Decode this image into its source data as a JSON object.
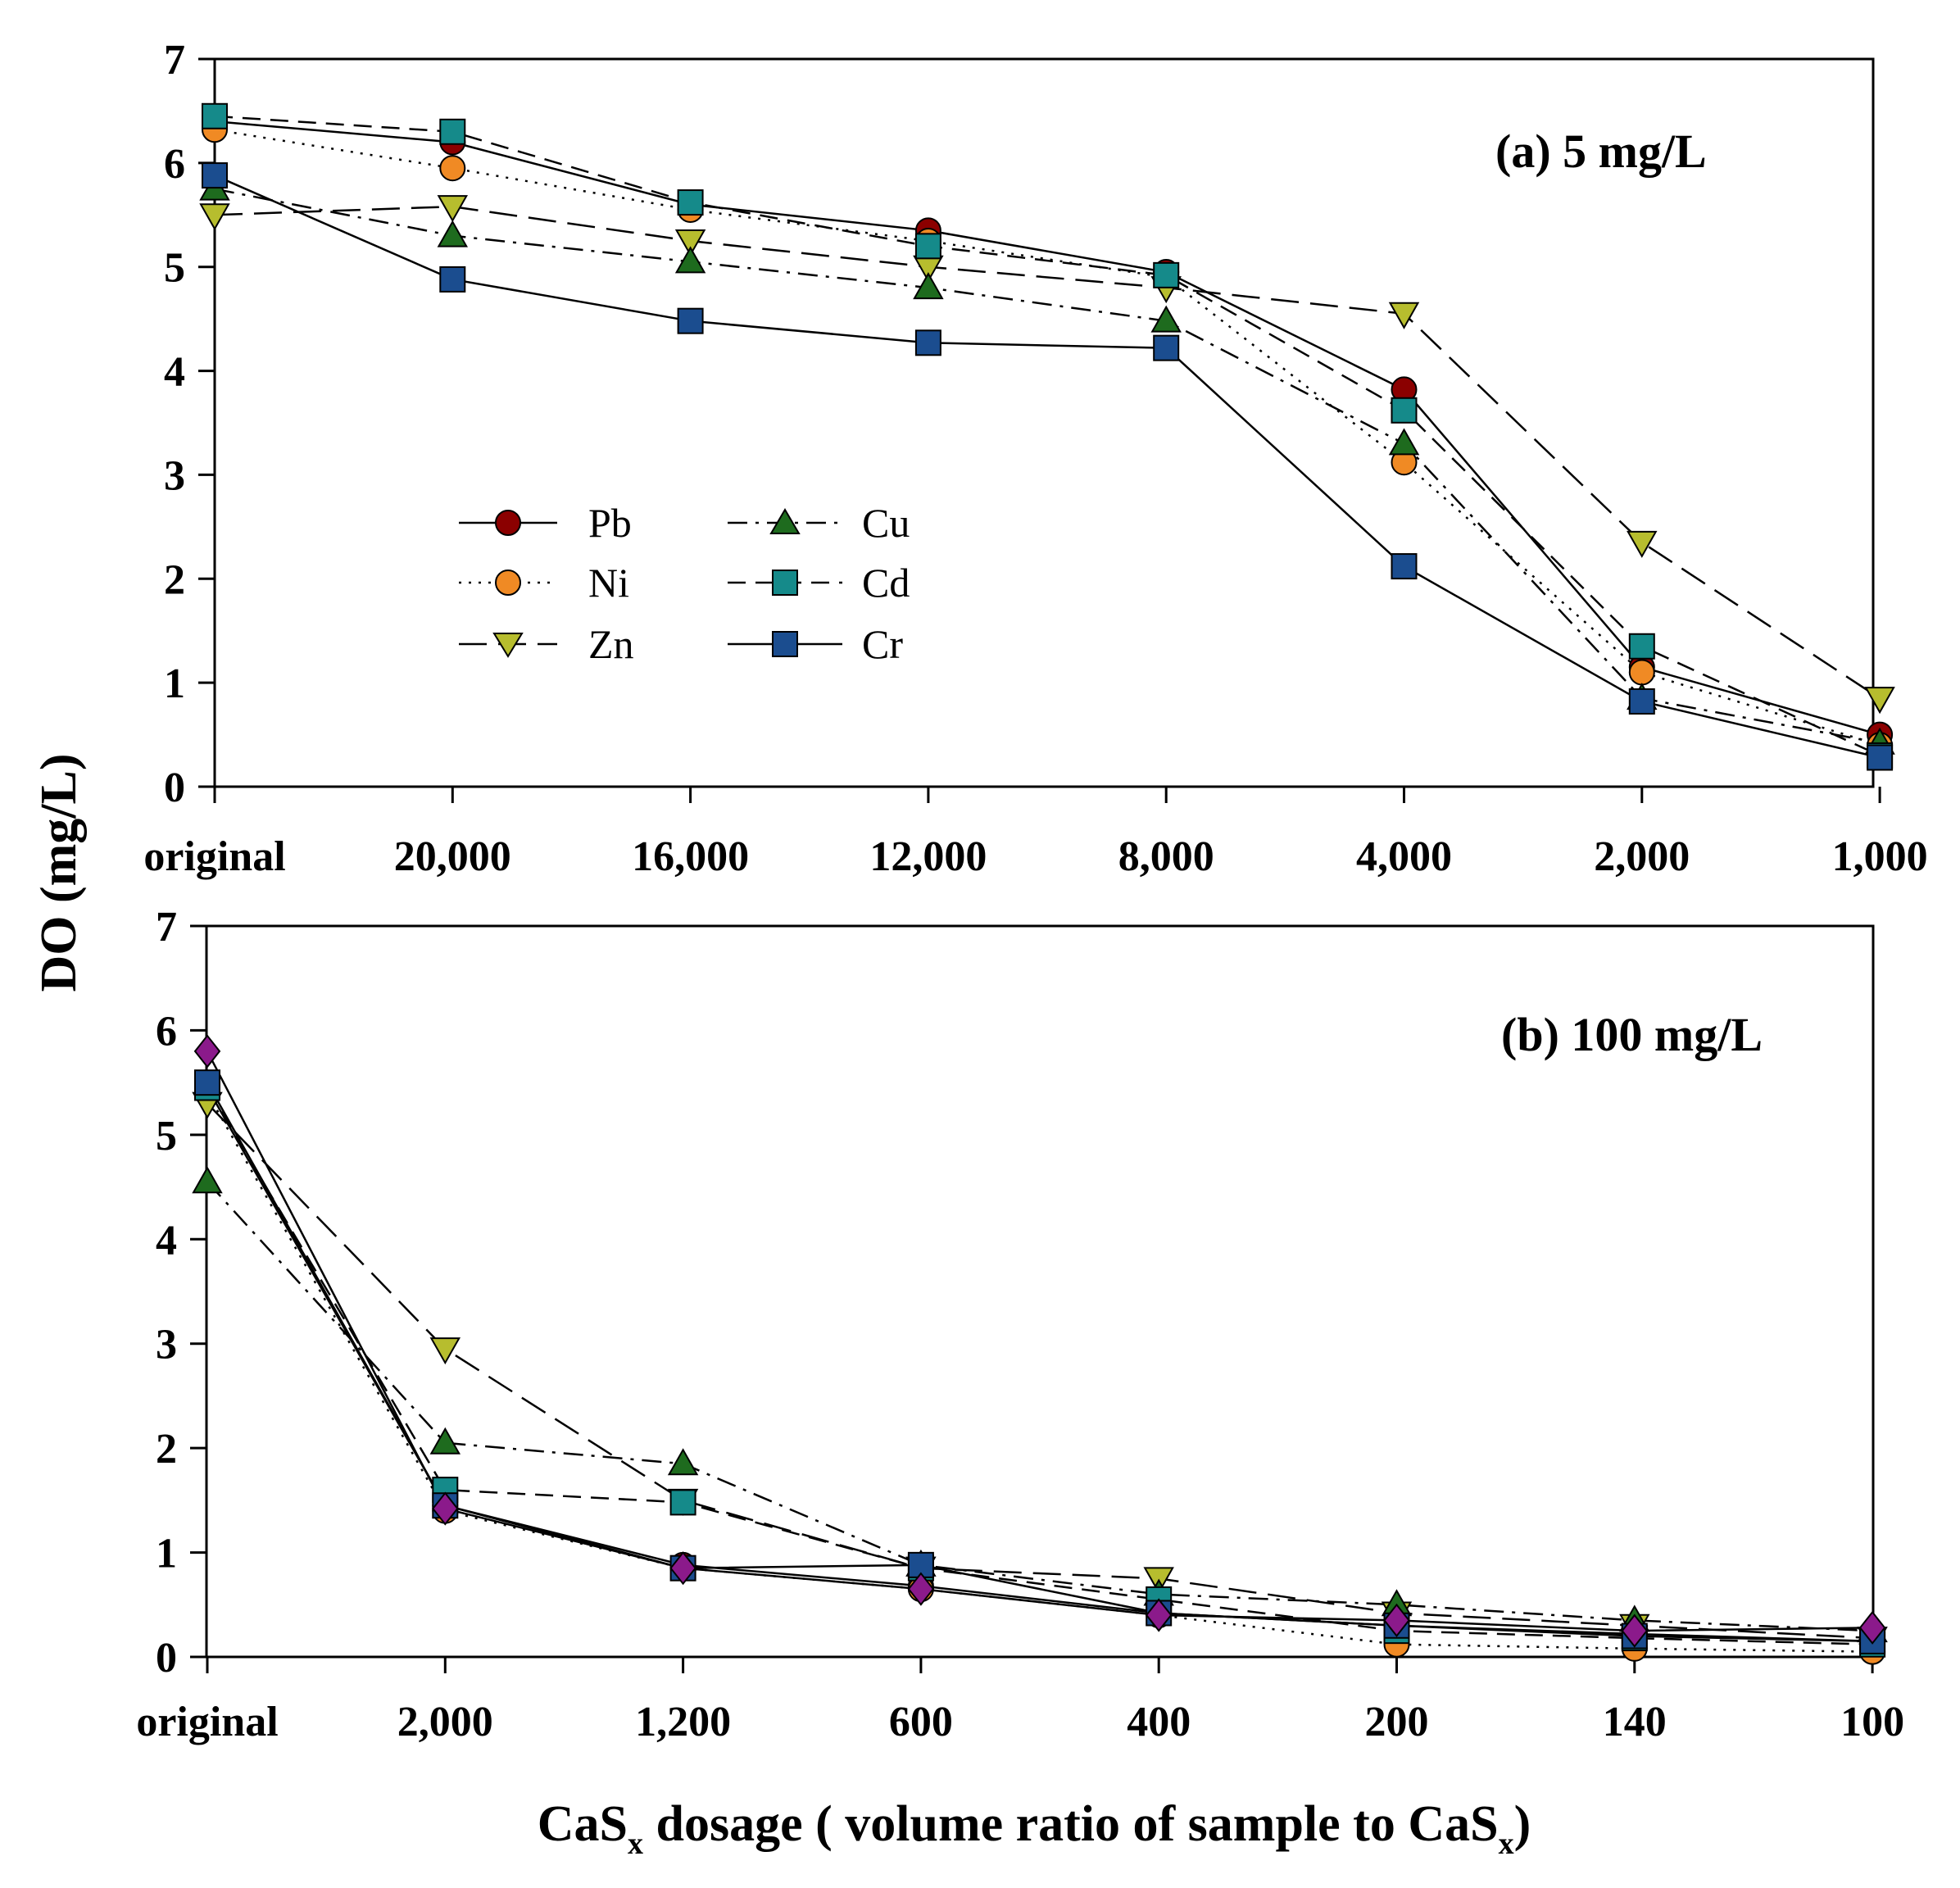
{
  "y_axis_label": "DO (mg/L)",
  "x_axis_label": {
    "prefix": "CaS",
    "sub1": "x",
    "middle": " dosage ( volume ratio of sample to CaS",
    "sub2": "x",
    "suffix": ")"
  },
  "legend": [
    {
      "name": "Pb",
      "marker": "circle",
      "color": "#8B0000",
      "dash": "solid"
    },
    {
      "name": "Cu",
      "marker": "triangle-up",
      "color": "#1E6B1E",
      "dash": "dashdot"
    },
    {
      "name": "Ni",
      "marker": "circle",
      "color": "#F08A24",
      "dash": "dotted"
    },
    {
      "name": "Cd",
      "marker": "square",
      "color": "#158A8A",
      "dash": "dash"
    },
    {
      "name": "Zn",
      "marker": "triangle-down",
      "color": "#B7BD2E",
      "dash": "longdash"
    },
    {
      "name": "Cr",
      "marker": "square",
      "color": "#1B4D8F",
      "dash": "solid"
    }
  ],
  "chart_data": [
    {
      "type": "line",
      "title": "(a) 5 mg/L",
      "ylabel": "DO (mg/L)",
      "ylim": [
        0,
        7
      ],
      "yticks": [
        "0",
        "1",
        "2",
        "3",
        "4",
        "5",
        "6",
        "7"
      ],
      "categories": [
        "original",
        "20,000",
        "16,000",
        "12,000",
        "8,000",
        "4,000",
        "2,000",
        "1,000"
      ],
      "series": [
        {
          "name": "Pb",
          "marker": "circle",
          "color": "#8B0000",
          "dash": "solid",
          "values": [
            6.4,
            6.2,
            5.6,
            5.35,
            4.95,
            3.82,
            1.15,
            0.5
          ]
        },
        {
          "name": "Ni",
          "marker": "circle",
          "color": "#F08A24",
          "dash": "dotted",
          "values": [
            6.32,
            5.95,
            5.55,
            5.25,
            4.9,
            3.12,
            1.1,
            0.4
          ]
        },
        {
          "name": "Zn",
          "marker": "triangle-down",
          "color": "#B7BD2E",
          "dash": "longdash",
          "values": [
            5.5,
            5.58,
            5.25,
            5.0,
            4.8,
            4.55,
            2.35,
            0.85
          ]
        },
        {
          "name": "Cu",
          "marker": "triangle-up",
          "color": "#1E6B1E",
          "dash": "dashdot",
          "values": [
            5.75,
            5.3,
            5.05,
            4.8,
            4.48,
            3.3,
            0.85,
            0.42
          ]
        },
        {
          "name": "Cd",
          "marker": "square",
          "color": "#158A8A",
          "dash": "dash",
          "values": [
            6.45,
            6.3,
            5.62,
            5.2,
            4.92,
            3.62,
            1.35,
            0.3
          ]
        },
        {
          "name": "Cr",
          "marker": "square",
          "color": "#1B4D8F",
          "dash": "solid",
          "values": [
            5.88,
            4.88,
            4.48,
            4.27,
            4.22,
            2.12,
            0.82,
            0.28
          ]
        }
      ]
    },
    {
      "type": "line",
      "title": "(b) 100 mg/L",
      "ylabel": "DO (mg/L)",
      "ylim": [
        0,
        7
      ],
      "yticks": [
        "0",
        "1",
        "2",
        "3",
        "4",
        "5",
        "6",
        "7"
      ],
      "categories": [
        "original",
        "2,000",
        "1,200",
        "600",
        "400",
        "200",
        "140",
        "100"
      ],
      "series": [
        {
          "name": "Pb",
          "marker": "circle",
          "color": "#8B0000",
          "dash": "solid",
          "values": [
            5.45,
            1.45,
            0.88,
            0.68,
            0.42,
            0.3,
            0.22,
            0.15
          ]
        },
        {
          "name": "Ni",
          "marker": "circle",
          "color": "#F08A24",
          "dash": "dotted",
          "values": [
            5.4,
            1.4,
            0.85,
            0.65,
            0.4,
            0.12,
            0.08,
            0.05
          ]
        },
        {
          "name": "Zn",
          "marker": "triangle-down",
          "color": "#B7BD2E",
          "dash": "longdash",
          "values": [
            5.3,
            2.95,
            1.5,
            0.85,
            0.75,
            0.42,
            0.3,
            0.18
          ]
        },
        {
          "name": "Cu",
          "marker": "triangle-up",
          "color": "#1E6B1E",
          "dash": "dashdot",
          "values": [
            4.55,
            2.05,
            1.85,
            0.88,
            0.6,
            0.5,
            0.35,
            0.25
          ]
        },
        {
          "name": "Cd",
          "marker": "square",
          "color": "#158A8A",
          "dash": "dash",
          "values": [
            5.45,
            1.6,
            1.48,
            0.85,
            0.55,
            0.25,
            0.18,
            0.12
          ]
        },
        {
          "name": "Cr",
          "marker": "square",
          "color": "#1B4D8F",
          "dash": "solid",
          "values": [
            5.5,
            1.45,
            0.85,
            0.88,
            0.42,
            0.3,
            0.2,
            0.15
          ]
        },
        {
          "name": "",
          "marker": "diamond",
          "color": "#8B1A8B",
          "dash": "solid",
          "values": [
            5.8,
            1.42,
            0.85,
            0.65,
            0.4,
            0.35,
            0.25,
            0.28
          ]
        }
      ]
    }
  ]
}
